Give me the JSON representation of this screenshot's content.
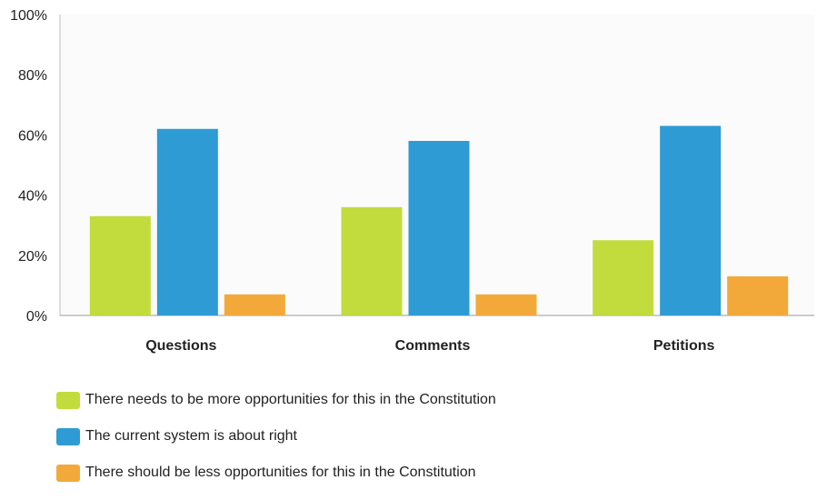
{
  "chart_data": {
    "type": "bar",
    "categories": [
      "Questions",
      "Comments",
      "Petitions"
    ],
    "series": [
      {
        "name": "There needs to be more opportunities for this in the Constitution",
        "values": [
          33,
          36,
          25
        ],
        "color": "#c2dc3e"
      },
      {
        "name": "The current system is about right",
        "values": [
          62,
          58,
          63
        ],
        "color": "#2f9bd4"
      },
      {
        "name": "There should be less opportunities for this in the Constitution",
        "values": [
          7,
          7,
          13
        ],
        "color": "#f3a93a"
      }
    ],
    "ylim": [
      0,
      100
    ],
    "yticks": [
      "0%",
      "20%",
      "40%",
      "60%",
      "80%",
      "100%"
    ],
    "grid": false,
    "legend_position": "bottom-left",
    "title": "",
    "xlabel": "",
    "ylabel": ""
  }
}
